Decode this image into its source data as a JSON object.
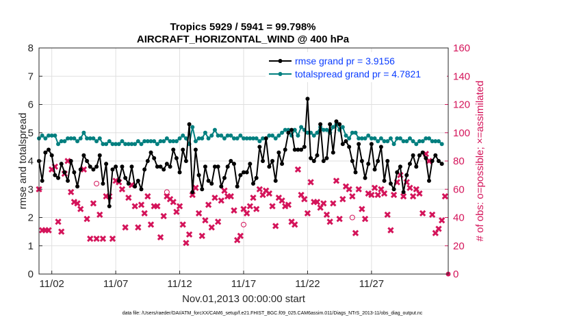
{
  "chart_data": {
    "type": "line",
    "title": "Tropics 5929 / 5941 = 99.798%",
    "subtitle": "AIRCRAFT_HORIZONTAL_WIND @ 400 hPa",
    "xlabel": "Nov.01,2013 00:00:00 start",
    "ylabel_left": "rmse and totalspread",
    "ylabel_right": "# of obs: o=possible; ×=assimilated",
    "xlim": [
      0,
      32
    ],
    "ylim_left": [
      0,
      8
    ],
    "ylim_right": [
      0,
      160
    ],
    "x_ticks": [
      {
        "value": 1,
        "label": "11/02"
      },
      {
        "value": 6,
        "label": "11/07"
      },
      {
        "value": 11,
        "label": "11/12"
      },
      {
        "value": 16,
        "label": "11/17"
      },
      {
        "value": 21,
        "label": "11/22"
      },
      {
        "value": 26,
        "label": "11/27"
      }
    ],
    "y_ticks_left": [
      "0",
      "1",
      "2",
      "3",
      "4",
      "5",
      "6",
      "7",
      "8"
    ],
    "y_ticks_right": [
      "0",
      "20",
      "40",
      "60",
      "80",
      "100",
      "120",
      "140",
      "160"
    ],
    "grid": true,
    "legend_position": "top-right",
    "series": [
      {
        "name": "rmse grand pr = 3.9156",
        "axis": "left",
        "color": "#000000",
        "marker": "circle",
        "x": [
          0.0,
          0.25,
          0.5,
          0.75,
          1.0,
          1.25,
          1.5,
          1.75,
          2.0,
          2.25,
          2.5,
          2.75,
          3.0,
          3.25,
          3.5,
          3.75,
          4.0,
          4.25,
          4.5,
          4.75,
          5.0,
          5.25,
          5.5,
          5.75,
          6.0,
          6.25,
          6.5,
          6.75,
          7.0,
          7.25,
          7.5,
          7.75,
          8.0,
          8.25,
          8.5,
          8.75,
          9.0,
          9.25,
          9.5,
          9.75,
          10.0,
          10.25,
          10.5,
          10.75,
          11.0,
          11.25,
          11.5,
          11.75,
          12.0,
          12.25,
          12.5,
          12.75,
          13.0,
          13.25,
          13.5,
          13.75,
          14.0,
          14.25,
          14.5,
          14.75,
          15.0,
          15.25,
          15.5,
          15.75,
          16.0,
          16.25,
          16.5,
          16.75,
          17.0,
          17.25,
          17.5,
          17.75,
          18.0,
          18.25,
          18.5,
          18.75,
          19.0,
          19.25,
          19.5,
          19.75,
          20.0,
          20.25,
          20.5,
          20.75,
          21.0,
          21.25,
          21.5,
          21.75,
          22.0,
          22.25,
          22.5,
          22.75,
          23.0,
          23.25,
          23.5,
          23.75,
          24.0,
          24.25,
          24.5,
          24.75,
          25.0,
          25.25,
          25.5,
          25.75,
          26.0,
          26.25,
          26.5,
          26.75,
          27.0,
          27.25,
          27.5,
          27.75,
          28.0,
          28.25,
          28.5,
          28.75,
          29.0,
          29.25,
          29.5,
          29.75,
          30.0,
          30.25,
          30.5,
          30.75,
          31.0,
          31.25,
          31.5
        ],
        "y": [
          4.0,
          3.3,
          4.3,
          4.4,
          4.2,
          3.5,
          3.4,
          3.9,
          3.6,
          3.3,
          4.0,
          3.6,
          3.1,
          3.7,
          4.2,
          4.0,
          3.8,
          3.7,
          3.8,
          4.2,
          3.2,
          3.9,
          2.4,
          3.7,
          3.8,
          3.3,
          3.8,
          3.4,
          3.2,
          3.8,
          3.1,
          3.3,
          3.0,
          3.7,
          4.0,
          4.3,
          4.1,
          3.8,
          3.8,
          3.7,
          3.9,
          3.8,
          4.4,
          4.1,
          3.6,
          4.4,
          4.0,
          5.3,
          2.9,
          4.4,
          3.5,
          3.0,
          3.8,
          3.3,
          3.2,
          3.8,
          3.8,
          3.1,
          3.4,
          3.8,
          4.0,
          3.9,
          3.1,
          3.5,
          3.6,
          3.6,
          3.9,
          3.2,
          3.4,
          4.5,
          4.0,
          4.8,
          3.8,
          4.0,
          3.3,
          4.3,
          3.9,
          4.4,
          5.0,
          5.1,
          4.4,
          4.4,
          4.4,
          4.5,
          6.2,
          4.1,
          4.0,
          4.2,
          5.3,
          4.0,
          4.1,
          5.3,
          4.3,
          5.4,
          5.3,
          4.6,
          4.7,
          4.5,
          4.0,
          3.6,
          4.6,
          4.0,
          3.4,
          3.9,
          4.6,
          3.7,
          4.0,
          4.5,
          3.3,
          4.0,
          3.2,
          3.0,
          3.6,
          3.8,
          2.9,
          3.5,
          3.9,
          4.2,
          3.8,
          4.2,
          4.3,
          4.1,
          3.3,
          4.0,
          4.2,
          4.0,
          3.9
        ],
        "note": "values estimated from the plotted line"
      },
      {
        "name": "totalspread grand pr = 4.7821",
        "axis": "left",
        "color": "#007f7f",
        "marker": "circle",
        "x": [
          0.0,
          0.25,
          0.5,
          0.75,
          1.0,
          1.25,
          1.5,
          1.75,
          2.0,
          2.25,
          2.5,
          2.75,
          3.0,
          3.25,
          3.5,
          3.75,
          4.0,
          4.25,
          4.5,
          4.75,
          5.0,
          5.25,
          5.5,
          5.75,
          6.0,
          6.25,
          6.5,
          6.75,
          7.0,
          7.25,
          7.5,
          7.75,
          8.0,
          8.25,
          8.5,
          8.75,
          9.0,
          9.25,
          9.5,
          9.75,
          10.0,
          10.25,
          10.5,
          10.75,
          11.0,
          11.25,
          11.5,
          11.75,
          12.0,
          12.25,
          12.5,
          12.75,
          13.0,
          13.25,
          13.5,
          13.75,
          14.0,
          14.25,
          14.5,
          14.75,
          15.0,
          15.25,
          15.5,
          15.75,
          16.0,
          16.25,
          16.5,
          16.75,
          17.0,
          17.25,
          17.5,
          17.75,
          18.0,
          18.25,
          18.5,
          18.75,
          19.0,
          19.25,
          19.5,
          19.75,
          20.0,
          20.25,
          20.5,
          20.75,
          21.0,
          21.25,
          21.5,
          21.75,
          22.0,
          22.25,
          22.5,
          22.75,
          23.0,
          23.25,
          23.5,
          23.75,
          24.0,
          24.25,
          24.5,
          24.75,
          25.0,
          25.25,
          25.5,
          25.75,
          26.0,
          26.25,
          26.5,
          26.75,
          27.0,
          27.25,
          27.5,
          27.75,
          28.0,
          28.25,
          28.5,
          28.75,
          29.0,
          29.25,
          29.5,
          29.75,
          30.0,
          30.25,
          30.5,
          30.75,
          31.0,
          31.25,
          31.5
        ],
        "y": [
          4.8,
          4.9,
          4.8,
          4.9,
          4.9,
          4.9,
          4.6,
          4.7,
          4.7,
          4.8,
          4.8,
          4.8,
          4.7,
          4.8,
          5.0,
          4.8,
          4.8,
          4.8,
          4.7,
          4.8,
          4.6,
          4.6,
          4.7,
          4.6,
          4.6,
          4.6,
          4.7,
          4.6,
          4.6,
          4.6,
          4.6,
          4.7,
          4.6,
          4.7,
          4.7,
          4.7,
          4.7,
          4.6,
          4.7,
          4.7,
          4.8,
          4.7,
          4.7,
          4.7,
          4.8,
          4.9,
          4.8,
          4.6,
          5.2,
          4.7,
          4.8,
          4.8,
          5.0,
          4.8,
          4.9,
          5.1,
          4.9,
          4.9,
          4.8,
          4.9,
          4.9,
          4.8,
          4.8,
          4.9,
          4.8,
          4.8,
          4.8,
          4.8,
          4.8,
          4.7,
          4.8,
          4.8,
          4.9,
          4.9,
          4.8,
          4.9,
          5.0,
          5.1,
          5.1,
          4.9,
          5.1,
          4.9,
          5.2,
          5.1,
          5.0,
          5.0,
          4.9,
          5.0,
          5.2,
          5.1,
          5.1,
          5.0,
          5.2,
          5.3,
          5.1,
          5.2,
          4.9,
          4.8,
          5.0,
          5.0,
          4.8,
          4.8,
          4.8,
          4.9,
          4.8,
          4.8,
          4.7,
          4.8,
          4.7,
          4.7,
          4.8,
          4.6,
          4.8,
          4.8,
          4.7,
          4.7,
          4.8,
          4.7,
          4.6,
          4.7,
          4.7,
          4.8,
          4.8,
          4.7,
          4.7,
          4.7,
          4.6
        ],
        "note": "values estimated from the plotted line"
      },
      {
        "name": "obs possible",
        "axis": "right",
        "color": "#d4145a",
        "marker": "o",
        "x": [
          4.5,
          10.0,
          16.0,
          24.5
        ],
        "y": [
          64,
          58,
          35,
          40
        ],
        "note": "approximate"
      },
      {
        "name": "obs assimilated",
        "axis": "right",
        "color": "#d4145a",
        "marker": "x",
        "x": [
          0.0,
          0.25,
          0.5,
          0.75,
          1.0,
          1.25,
          1.5,
          1.75,
          2.0,
          2.25,
          2.5,
          2.75,
          3.0,
          3.25,
          3.5,
          3.75,
          4.0,
          4.25,
          4.5,
          4.75,
          5.0,
          5.25,
          5.5,
          5.75,
          6.0,
          6.25,
          6.5,
          6.75,
          7.0,
          7.25,
          7.5,
          7.75,
          8.0,
          8.25,
          8.5,
          8.75,
          9.0,
          9.25,
          9.5,
          9.75,
          10.0,
          10.25,
          10.5,
          10.75,
          11.0,
          11.25,
          11.5,
          11.75,
          12.0,
          12.25,
          12.5,
          12.75,
          13.0,
          13.25,
          13.5,
          13.75,
          14.0,
          14.25,
          14.5,
          14.75,
          15.0,
          15.25,
          15.5,
          15.75,
          16.0,
          16.25,
          16.5,
          16.75,
          17.0,
          17.25,
          17.5,
          17.75,
          18.0,
          18.25,
          18.5,
          18.75,
          19.0,
          19.25,
          19.5,
          19.75,
          20.0,
          20.25,
          20.5,
          20.75,
          21.0,
          21.25,
          21.5,
          21.75,
          22.0,
          22.25,
          22.5,
          22.75,
          23.0,
          23.25,
          23.5,
          23.75,
          24.0,
          24.25,
          24.5,
          24.75,
          25.0,
          25.25,
          25.5,
          25.75,
          26.0,
          26.25,
          26.5,
          26.75,
          27.0,
          27.25,
          27.5,
          27.75,
          28.0,
          28.25,
          28.5,
          28.75,
          29.0,
          29.25,
          29.5,
          29.75,
          30.0,
          30.25,
          30.5,
          30.75,
          31.0,
          31.25,
          31.5,
          31.75
        ],
        "y": [
          60,
          31,
          31,
          31,
          74,
          76,
          37,
          30,
          71,
          80,
          58,
          51,
          50,
          46,
          74,
          39,
          25,
          50,
          25,
          42,
          25,
          55,
          55,
          25,
          66,
          65,
          60,
          33,
          54,
          63,
          48,
          33,
          49,
          43,
          55,
          35,
          48,
          48,
          26,
          41,
          55,
          53,
          51,
          44,
          48,
          35,
          22,
          28,
          56,
          61,
          43,
          27,
          38,
          49,
          33,
          54,
          37,
          52,
          59,
          55,
          55,
          45,
          24,
          27,
          46,
          43,
          48,
          54,
          46,
          60,
          56,
          59,
          57,
          48,
          34,
          54,
          52,
          48,
          49,
          37,
          35,
          74,
          56,
          53,
          43,
          65,
          51,
          51,
          47,
          50,
          42,
          37,
          50,
          66,
          39,
          53,
          62,
          60,
          55,
          29,
          60,
          46,
          39,
          57,
          56,
          61,
          56,
          60,
          57,
          42,
          31,
          56,
          65,
          70,
          55,
          65,
          61,
          55,
          60,
          57,
          43,
          85,
          80,
          42,
          29,
          32,
          38,
          55
        ],
        "note": "values estimated from plotted markers"
      }
    ],
    "footer": "data file: /Users/raeder/DAI/ATM_forcXX/CAM6_setup/f.e21.FHIST_BGC.f09_025.CAM6assim.011/Diags_NTrS_2013-11/obs_diag_output.nc"
  }
}
